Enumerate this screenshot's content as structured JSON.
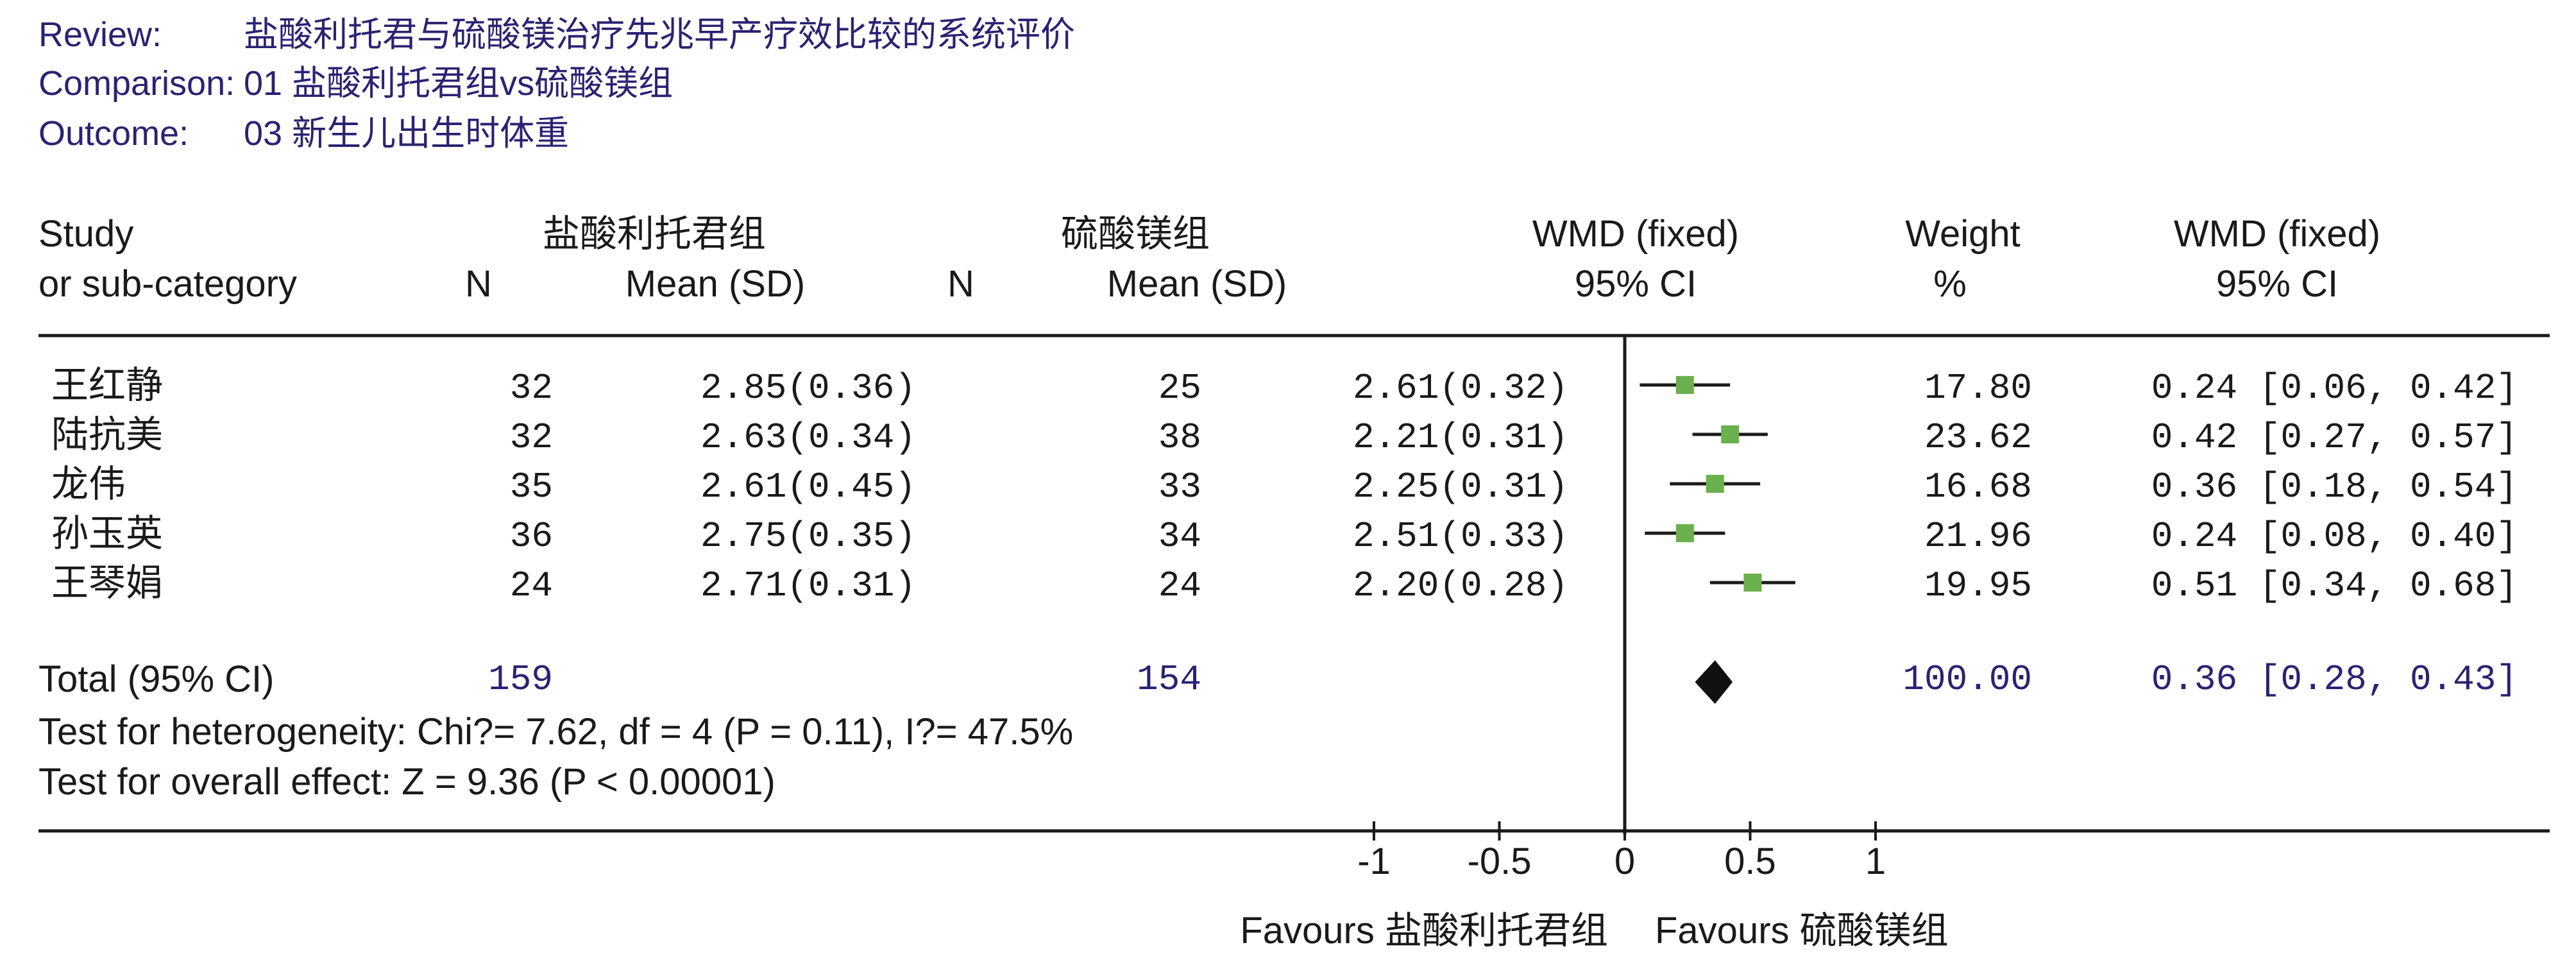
{
  "header": {
    "review_label": "Review:",
    "review_value": "盐酸利托君与硫酸镁治疗先兆早产疗效比较的系统评价",
    "comparison_label": "Comparison:",
    "comparison_value": "01 盐酸利托君组vs硫酸镁组",
    "outcome_label": "Outcome:",
    "outcome_value": "03 新生儿出生时体重"
  },
  "columns": {
    "study_line1": "Study",
    "study_line2": "or sub-category",
    "group1": "盐酸利托君组",
    "group2": "硫酸镁组",
    "n": "N",
    "mean_sd": "Mean (SD)",
    "wmd_plot_line1": "WMD (fixed)",
    "wmd_plot_line2": "95% CI",
    "weight_line1": "Weight",
    "weight_line2": "%",
    "wmd_text_line1": "WMD (fixed)",
    "wmd_text_line2": "95% CI"
  },
  "studies": [
    {
      "name": "王红静",
      "n1": "32",
      "mean_sd1": "2.85(0.36)",
      "n2": "25",
      "mean_sd2": "2.61(0.32)",
      "weight": "17.80",
      "wmd_text": "0.24 [0.06, 0.42]"
    },
    {
      "name": "陆抗美",
      "n1": "32",
      "mean_sd1": "2.63(0.34)",
      "n2": "38",
      "mean_sd2": "2.21(0.31)",
      "weight": "23.62",
      "wmd_text": "0.42 [0.27, 0.57]"
    },
    {
      "name": "龙伟",
      "n1": "35",
      "mean_sd1": "2.61(0.45)",
      "n2": "33",
      "mean_sd2": "2.25(0.31)",
      "weight": "16.68",
      "wmd_text": "0.36 [0.18, 0.54]"
    },
    {
      "name": "孙玉英",
      "n1": "36",
      "mean_sd1": "2.75(0.35)",
      "n2": "34",
      "mean_sd2": "2.51(0.33)",
      "weight": "21.96",
      "wmd_text": "0.24 [0.08, 0.40]"
    },
    {
      "name": "王琴娟",
      "n1": "24",
      "mean_sd1": "2.71(0.31)",
      "n2": "24",
      "mean_sd2": "2.20(0.28)",
      "weight": "19.95",
      "wmd_text": "0.51 [0.34, 0.68]"
    }
  ],
  "total": {
    "label": "Total (95% CI)",
    "n1": "159",
    "n2": "154",
    "weight": "100.00",
    "wmd_text": "0.36 [0.28, 0.43]"
  },
  "tests": {
    "heterogeneity": "Test for heterogeneity: Chi?= 7.62, df = 4 (P = 0.11), I?= 47.5%",
    "overall": "Test for overall effect: Z = 9.36 (P < 0.00001)"
  },
  "axis": {
    "ticks": [
      {
        "value": -1,
        "label": "-1"
      },
      {
        "value": -0.5,
        "label": "-0.5"
      },
      {
        "value": 0,
        "label": "0"
      },
      {
        "value": 0.5,
        "label": "0.5"
      },
      {
        "value": 1,
        "label": "1"
      }
    ],
    "favours_left": "Favours 盐酸利托君组",
    "favours_right": "Favours 硫酸镁组"
  },
  "colors": {
    "header_text": "#2b2272",
    "text": "#1a1a1a",
    "marker": "#6ab04c",
    "diamond": "#111111"
  },
  "chart_data": {
    "type": "forest",
    "xlim": [
      -1,
      1
    ],
    "reference_line": 0,
    "series": [
      {
        "study": "王红静",
        "estimate": 0.24,
        "ci": [
          0.06,
          0.42
        ],
        "weight": 17.8
      },
      {
        "study": "陆抗美",
        "estimate": 0.42,
        "ci": [
          0.27,
          0.57
        ],
        "weight": 23.62
      },
      {
        "study": "龙伟",
        "estimate": 0.36,
        "ci": [
          0.18,
          0.54
        ],
        "weight": 16.68
      },
      {
        "study": "孙玉英",
        "estimate": 0.24,
        "ci": [
          0.08,
          0.4
        ],
        "weight": 21.96
      },
      {
        "study": "王琴娟",
        "estimate": 0.51,
        "ci": [
          0.34,
          0.68
        ],
        "weight": 19.95
      }
    ],
    "pooled": {
      "estimate": 0.36,
      "ci": [
        0.28,
        0.43
      ]
    }
  }
}
